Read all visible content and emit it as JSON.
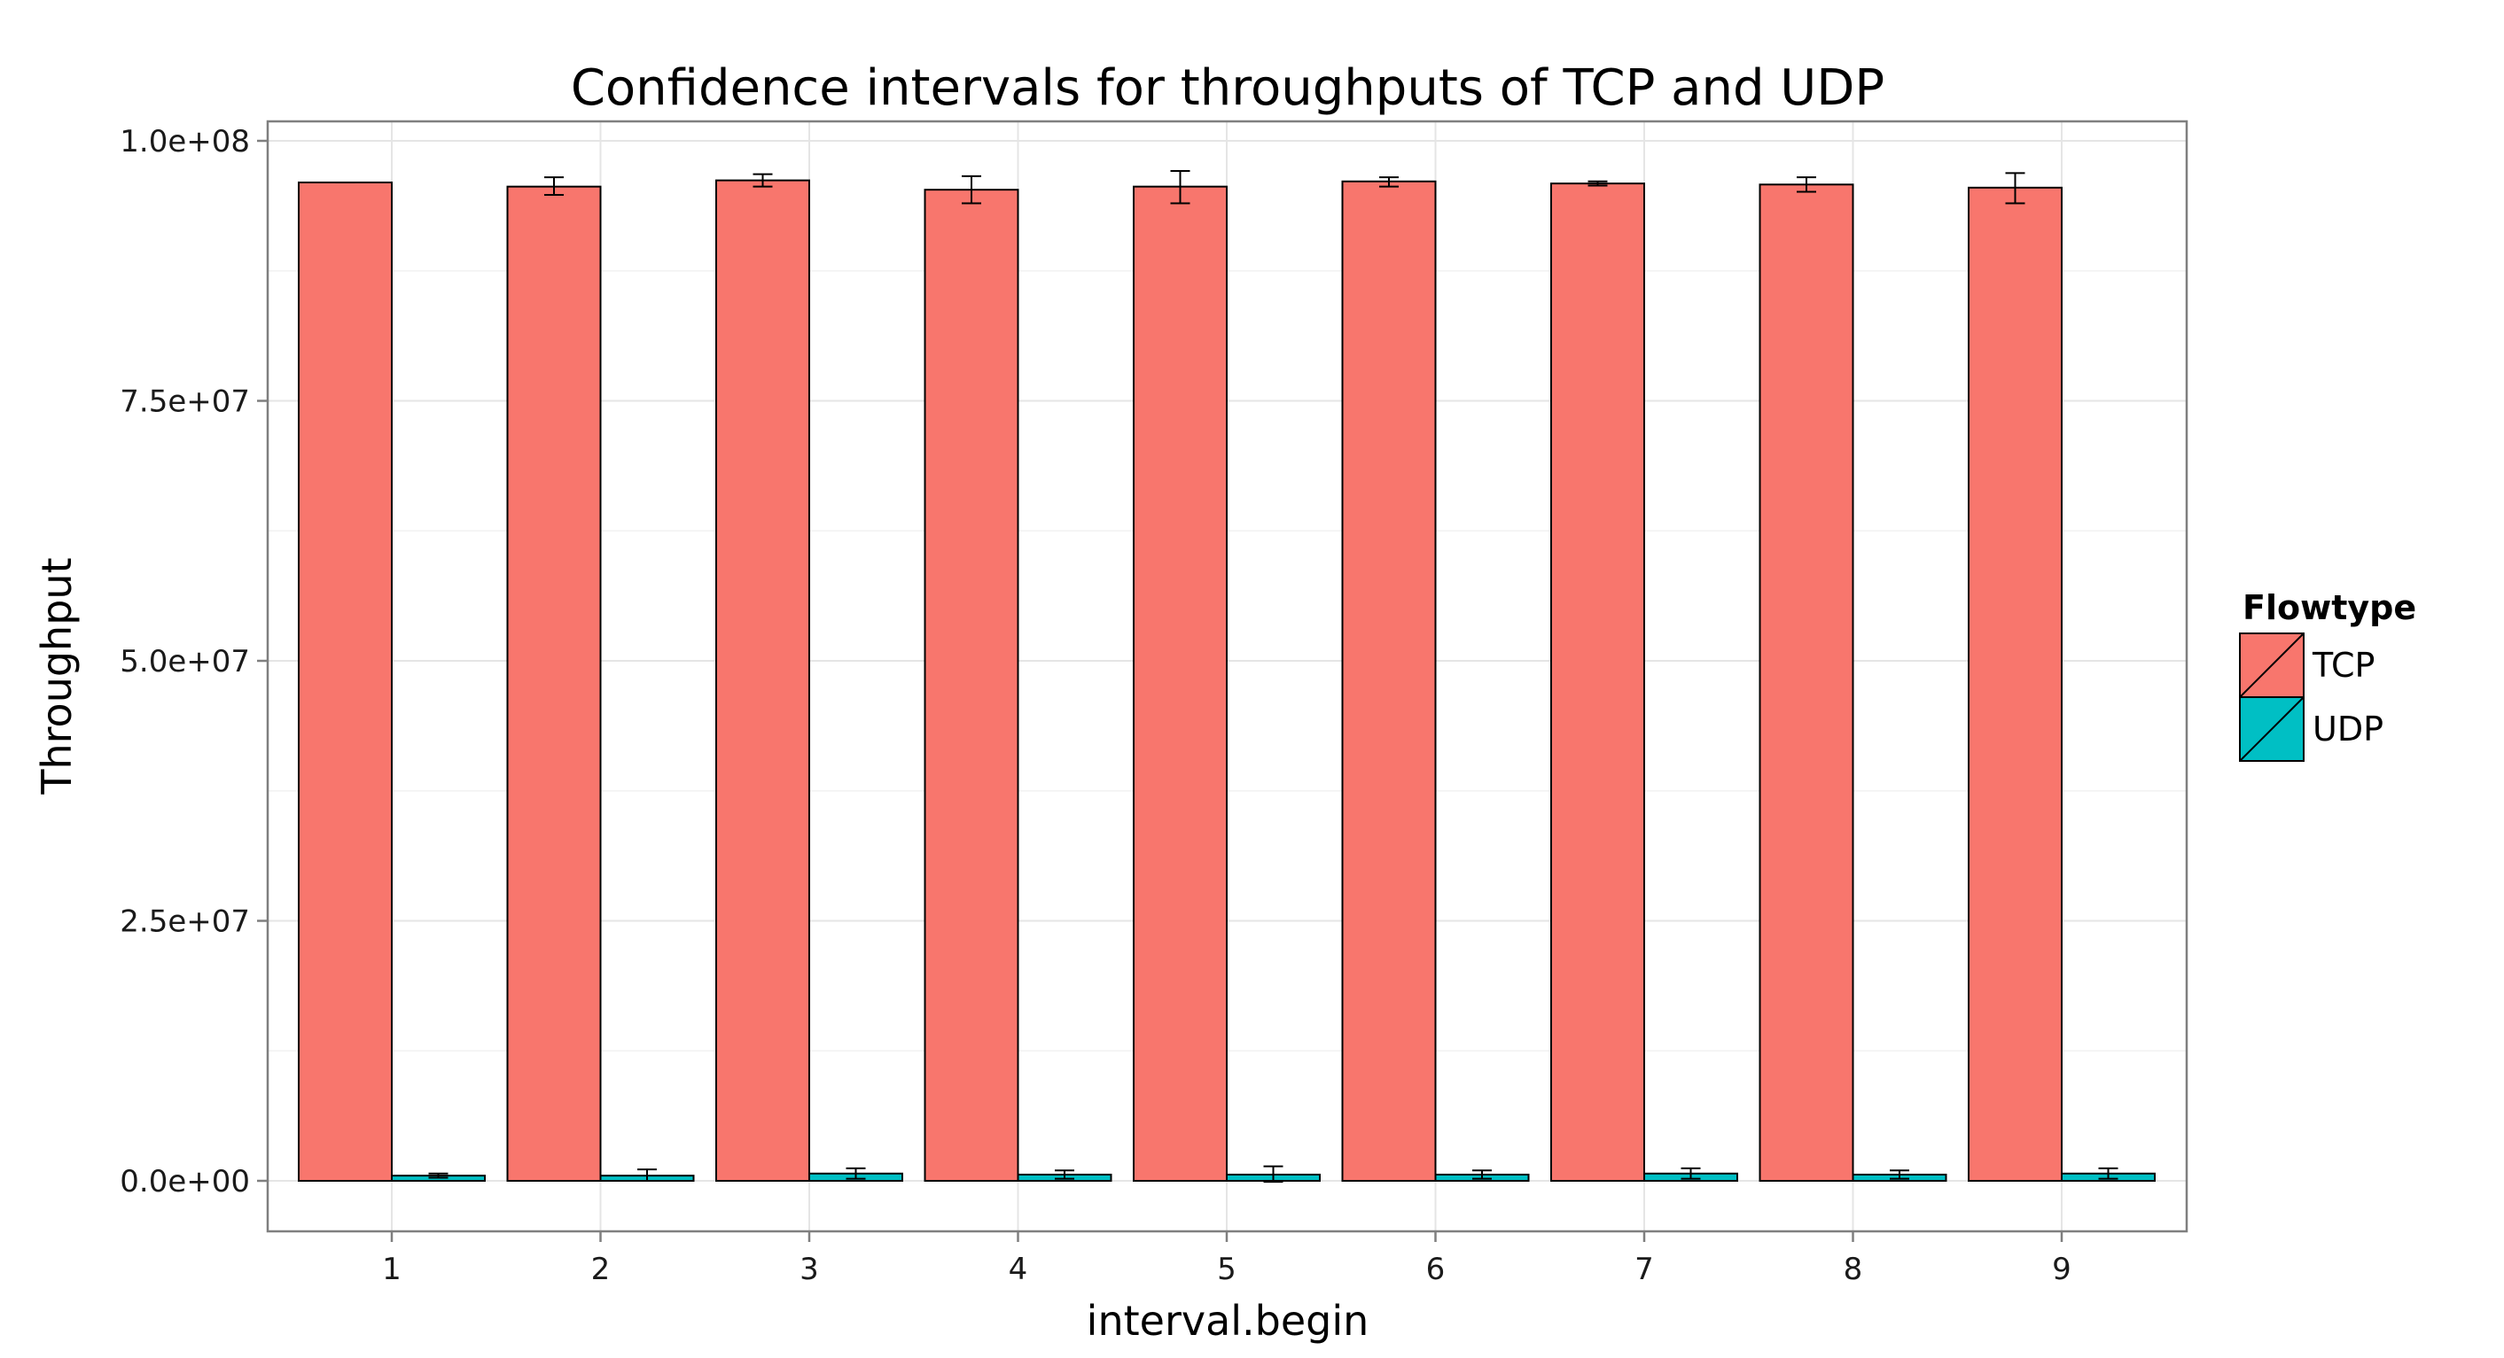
{
  "chart_data": {
    "type": "bar",
    "title": "Confidence intervals for throughputs of TCP and UDP",
    "xlabel": "interval.begin",
    "ylabel": "Throughput",
    "categories": [
      "1",
      "2",
      "3",
      "4",
      "5",
      "6",
      "7",
      "8",
      "9"
    ],
    "ylim": [
      -5000000,
      101800000
    ],
    "yticks": [
      0,
      25000000,
      50000000,
      75000000,
      100000000
    ],
    "ytick_labels": [
      "0.0e+00",
      "2.5e+07",
      "5.0e+07",
      "7.5e+07",
      "1.0e+08"
    ],
    "grid": true,
    "legend_title": "Flowtype",
    "legend_position": "right",
    "series": [
      {
        "name": "TCP",
        "color": "#F8766D",
        "values": [
          96000000,
          95600000,
          96200000,
          95300000,
          95600000,
          96100000,
          95900000,
          95800000,
          95500000
        ],
        "lower": [
          96000000,
          94800000,
          95600000,
          94000000,
          94000000,
          95600000,
          95700000,
          95100000,
          94000000
        ],
        "upper": [
          96000000,
          96500000,
          96800000,
          96600000,
          97100000,
          96500000,
          96100000,
          96500000,
          96900000
        ]
      },
      {
        "name": "UDP",
        "color": "#00BFC4",
        "values": [
          500000,
          500000,
          700000,
          600000,
          600000,
          600000,
          700000,
          600000,
          700000
        ],
        "lower": [
          300000,
          0,
          200000,
          200000,
          -100000,
          200000,
          200000,
          200000,
          200000
        ],
        "upper": [
          700000,
          1100000,
          1200000,
          1000000,
          1400000,
          1000000,
          1200000,
          1000000,
          1200000
        ]
      }
    ]
  }
}
